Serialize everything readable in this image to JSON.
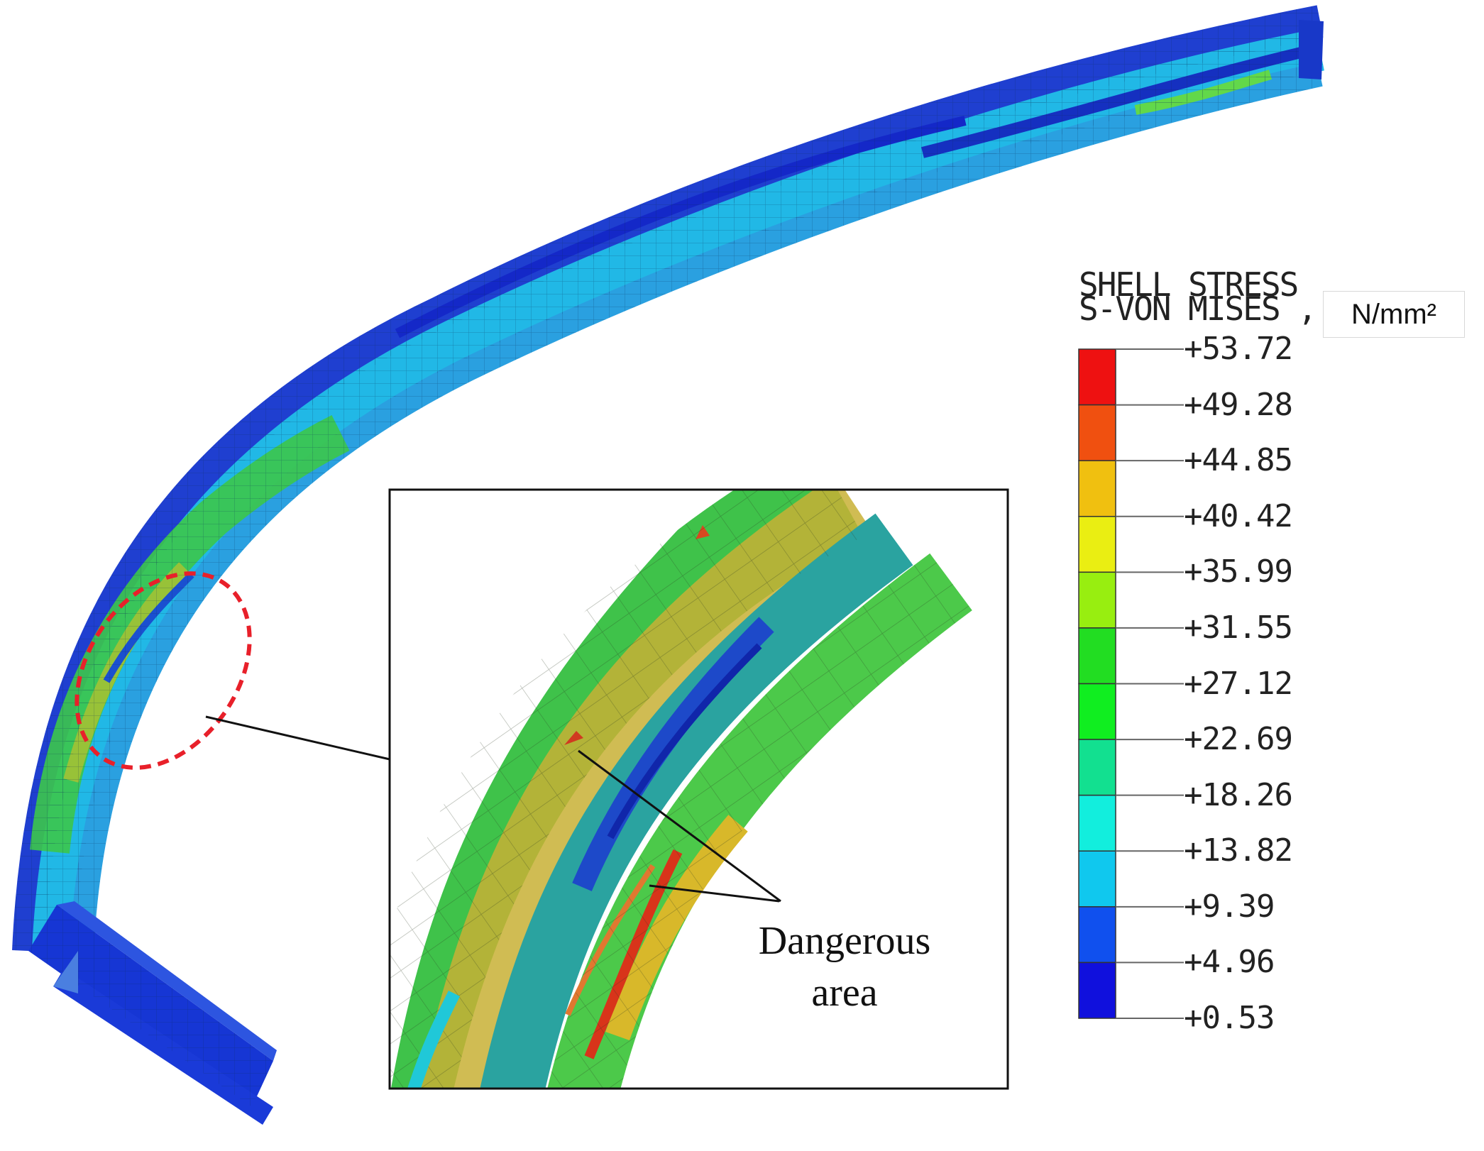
{
  "legend": {
    "title_line1": "SHELL STRESS",
    "title_line2": "S-VON MISES ,",
    "unit": "N/mm²",
    "colors": [
      "#ee1111",
      "#f05010",
      "#f0c010",
      "#eaee12",
      "#98ee10",
      "#22dd22",
      "#10ee20",
      "#12e090",
      "#12eedd",
      "#10c8ee",
      "#1050ee",
      "#1010dd"
    ],
    "labels": [
      "+53.72",
      "+49.28",
      "+44.85",
      "+40.42",
      "+35.99",
      "+31.55",
      "+27.12",
      "+22.69",
      "+18.26",
      "+13.82",
      "+9.39",
      "+4.96",
      "+0.53"
    ]
  },
  "annotation": {
    "line1": "Dangerous",
    "line2": "area"
  }
}
